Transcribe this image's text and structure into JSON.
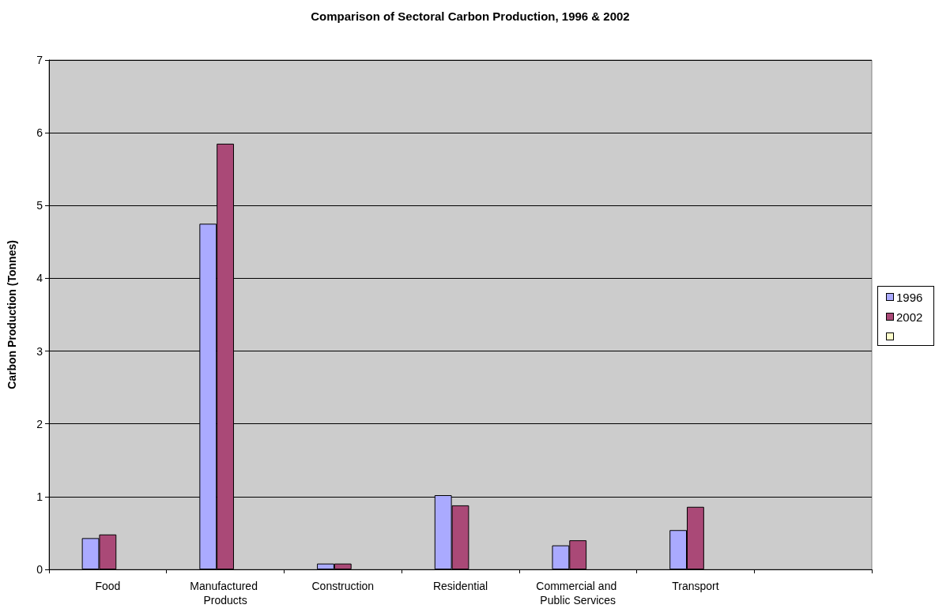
{
  "chart_data": {
    "type": "bar",
    "title": "Comparison of Sectoral Carbon Production, 1996 & 2002",
    "ylabel": "Carbon Production (Tonnes)",
    "categories": [
      "Food",
      "Manufactured Products",
      "Construction",
      "Residential",
      "Commercial and Public Services",
      "Transport",
      null
    ],
    "series": [
      {
        "name": "1996",
        "color": "#aaaaff",
        "values": [
          0.43,
          4.75,
          0.08,
          1.02,
          0.33,
          0.54,
          null
        ]
      },
      {
        "name": "2002",
        "color": "#aa4977",
        "values": [
          0.48,
          5.85,
          0.08,
          0.88,
          0.4,
          0.86,
          null
        ]
      },
      {
        "color": "#ffffcc",
        "values": [
          null,
          null,
          null,
          null,
          null,
          null,
          null
        ]
      }
    ],
    "ylim": [
      0,
      7
    ],
    "yticks": [
      0,
      1,
      2,
      3,
      4,
      5,
      6,
      7
    ],
    "grid": "y",
    "legend": "right"
  }
}
